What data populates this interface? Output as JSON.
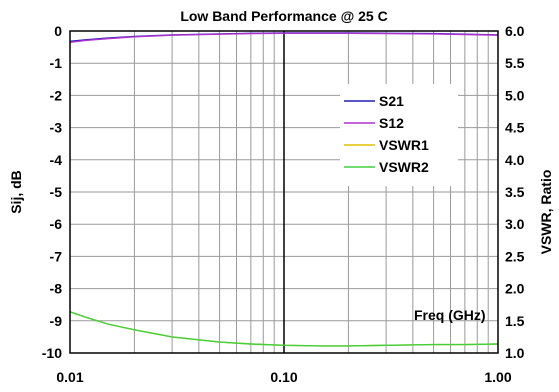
{
  "chart_data": {
    "type": "line",
    "title": "Low Band Performance @ 25 C",
    "xlabel": "Freq (GHz)",
    "ylabel": "Sij, dB",
    "y2label": "VSWR, Ratio",
    "x_scale": "log",
    "xlim": [
      0.01,
      1.0
    ],
    "ylim": [
      -10,
      0
    ],
    "y2lim": [
      1.0,
      6.0
    ],
    "x_ticks": [
      "0.01",
      "0.10",
      "1.00"
    ],
    "y_ticks": [
      "0",
      "-1",
      "-2",
      "-3",
      "-4",
      "-5",
      "-6",
      "-7",
      "-8",
      "-9",
      "-10"
    ],
    "y2_ticks": [
      "6.0",
      "5.5",
      "5.0",
      "4.5",
      "4.0",
      "3.5",
      "3.0",
      "2.5",
      "2.0",
      "1.5",
      "1.0"
    ],
    "grid": true,
    "legend_position": "right",
    "series": [
      {
        "name": "S21",
        "axis": "left",
        "color": "#1f1fb4",
        "x": [
          0.01,
          0.012,
          0.015,
          0.02,
          0.03,
          0.05,
          0.07,
          0.1,
          0.15,
          0.2,
          0.3,
          0.5,
          0.7,
          1.0
        ],
        "y": [
          -0.32,
          -0.27,
          -0.22,
          -0.17,
          -0.12,
          -0.09,
          -0.07,
          -0.06,
          -0.06,
          -0.06,
          -0.07,
          -0.08,
          -0.1,
          -0.12
        ]
      },
      {
        "name": "S12",
        "axis": "left",
        "color": "#b030d0",
        "x": [
          0.01,
          0.012,
          0.015,
          0.02,
          0.03,
          0.05,
          0.07,
          0.1,
          0.15,
          0.2,
          0.3,
          0.5,
          0.7,
          1.0
        ],
        "y": [
          -0.35,
          -0.29,
          -0.24,
          -0.18,
          -0.13,
          -0.1,
          -0.08,
          -0.07,
          -0.07,
          -0.07,
          -0.08,
          -0.09,
          -0.11,
          -0.13
        ]
      },
      {
        "name": "VSWR1",
        "axis": "right",
        "color": "#e0c000",
        "x": [
          0.01,
          0.012,
          0.015,
          0.02,
          0.03,
          0.05,
          0.07,
          0.1,
          0.15,
          0.2,
          0.3,
          0.5,
          0.7,
          1.0
        ],
        "y": [
          1.64,
          1.55,
          1.45,
          1.36,
          1.25,
          1.17,
          1.14,
          1.12,
          1.11,
          1.11,
          1.12,
          1.13,
          1.13,
          1.14
        ]
      },
      {
        "name": "VSWR2",
        "axis": "right",
        "color": "#40d040",
        "x": [
          0.01,
          0.012,
          0.015,
          0.02,
          0.03,
          0.05,
          0.07,
          0.1,
          0.15,
          0.2,
          0.3,
          0.5,
          0.7,
          1.0
        ],
        "y": [
          1.64,
          1.55,
          1.45,
          1.36,
          1.25,
          1.17,
          1.14,
          1.12,
          1.11,
          1.11,
          1.12,
          1.13,
          1.13,
          1.14
        ]
      }
    ]
  }
}
